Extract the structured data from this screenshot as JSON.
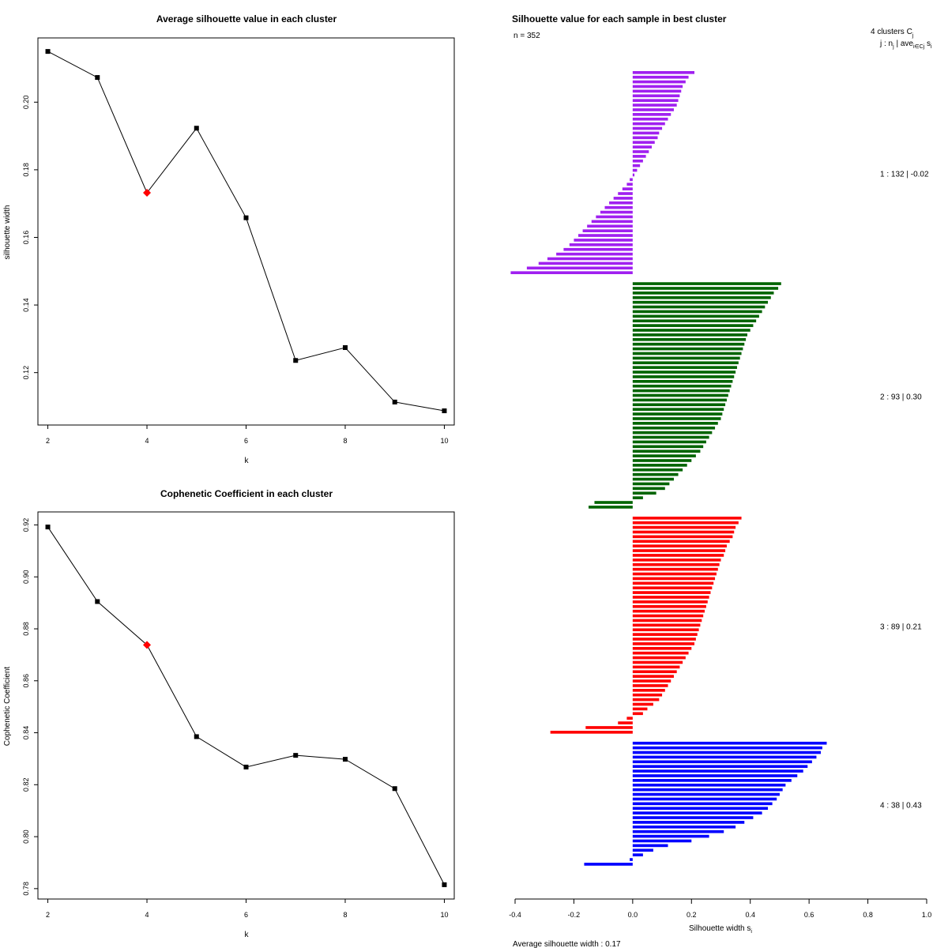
{
  "chart_data": [
    {
      "id": "avg_silhouette",
      "type": "line",
      "title": "Average silhouette value in each cluster",
      "xlabel": "k",
      "ylabel": "silhouette width",
      "x": [
        2,
        3,
        4,
        5,
        6,
        7,
        8,
        9,
        10
      ],
      "values": [
        0.215,
        0.2073,
        0.1732,
        0.1923,
        0.1658,
        0.1236,
        0.1274,
        0.1113,
        0.1087
      ],
      "highlight_x": 4,
      "xlim": [
        1.8,
        10.2
      ],
      "ylim": [
        0.1045,
        0.219
      ],
      "xticks": [
        2,
        4,
        6,
        8,
        10
      ],
      "xtick_labels": [
        "2",
        "4",
        "6",
        "8",
        "10"
      ],
      "yticks": [
        0.12,
        0.14,
        0.16,
        0.18,
        0.2
      ],
      "ytick_labels": [
        "0.12",
        "0.14",
        "0.16",
        "0.18",
        "0.20"
      ],
      "colors": {
        "line": "#000000",
        "point": "#000000",
        "highlight": "#ff0000"
      }
    },
    {
      "id": "cophenetic",
      "type": "line",
      "title": "Cophenetic Coefficient in each cluster",
      "xlabel": "k",
      "ylabel": "Cophenetic Coefficient",
      "x": [
        2,
        3,
        4,
        5,
        6,
        7,
        8,
        9,
        10
      ],
      "values": [
        0.9192,
        0.8905,
        0.8738,
        0.8385,
        0.8268,
        0.8313,
        0.8298,
        0.8185,
        0.7815
      ],
      "highlight_x": 4,
      "xlim": [
        1.8,
        10.2
      ],
      "ylim": [
        0.776,
        0.925
      ],
      "xticks": [
        2,
        4,
        6,
        8,
        10
      ],
      "xtick_labels": [
        "2",
        "4",
        "6",
        "8",
        "10"
      ],
      "yticks": [
        0.78,
        0.8,
        0.82,
        0.84,
        0.86,
        0.88,
        0.9,
        0.92
      ],
      "ytick_labels": [
        "0.78",
        "0.80",
        "0.82",
        "0.84",
        "0.86",
        "0.88",
        "0.90",
        "0.92"
      ],
      "colors": {
        "line": "#000000",
        "point": "#000000",
        "highlight": "#ff0000"
      }
    },
    {
      "id": "silhouette_samples",
      "type": "bar",
      "orientation": "horizontal",
      "title": "Silhouette value for each sample in best cluster",
      "n_label": "n = 352",
      "header_line1": "4  clusters  C",
      "header_sub1": "j",
      "header_line2": "j :  n",
      "header_sub2": "j",
      "header_line2b": " | ave",
      "header_sub3": "i∈Cj",
      "header_line2c": " s",
      "header_sub4": "i",
      "xlabel": "Silhouette width s",
      "xlabel_sub": "i",
      "avg_label": "Average silhouette width :  0.17",
      "xlim": [
        -0.4,
        1.0
      ],
      "xticks": [
        -0.4,
        -0.2,
        0.0,
        0.2,
        0.4,
        0.6,
        0.8,
        1.0
      ],
      "xtick_labels": [
        "-0.4",
        "-0.2",
        "0.0",
        "0.2",
        "0.4",
        "0.6",
        "0.8",
        "1.0"
      ],
      "clusters": [
        {
          "cluster": 1,
          "n": 132,
          "ave": -0.02,
          "label": "1 :   132  |  -0.02",
          "color": "#a020f0",
          "positive": [
            0.21,
            0.19,
            0.18,
            0.17,
            0.165,
            0.16,
            0.155,
            0.15,
            0.14,
            0.13,
            0.12,
            0.11,
            0.1,
            0.09,
            0.085,
            0.075,
            0.065,
            0.055,
            0.045,
            0.035,
            0.025,
            0.015,
            0.006
          ],
          "negative": [
            -0.01,
            -0.02,
            -0.035,
            -0.05,
            -0.065,
            -0.08,
            -0.095,
            -0.11,
            -0.125,
            -0.14,
            -0.155,
            -0.17,
            -0.185,
            -0.2,
            -0.215,
            -0.235,
            -0.26,
            -0.29,
            -0.32,
            -0.36,
            -0.415
          ]
        },
        {
          "cluster": 2,
          "n": 93,
          "ave": 0.3,
          "label": "2 :   93  |  0.30",
          "color": "#006400",
          "positive": [
            0.505,
            0.495,
            0.48,
            0.47,
            0.46,
            0.45,
            0.44,
            0.43,
            0.42,
            0.41,
            0.4,
            0.39,
            0.385,
            0.38,
            0.375,
            0.37,
            0.365,
            0.36,
            0.355,
            0.35,
            0.345,
            0.34,
            0.335,
            0.33,
            0.325,
            0.32,
            0.315,
            0.31,
            0.305,
            0.3,
            0.29,
            0.28,
            0.27,
            0.26,
            0.25,
            0.24,
            0.23,
            0.215,
            0.2,
            0.185,
            0.17,
            0.155,
            0.14,
            0.125,
            0.11,
            0.08,
            0.035
          ],
          "negative": [
            -0.13,
            -0.15
          ]
        },
        {
          "cluster": 3,
          "n": 89,
          "ave": 0.21,
          "label": "3 :   89  |  0.21",
          "color": "#ff0000",
          "positive": [
            0.37,
            0.36,
            0.35,
            0.345,
            0.34,
            0.33,
            0.32,
            0.315,
            0.31,
            0.3,
            0.295,
            0.29,
            0.285,
            0.28,
            0.275,
            0.27,
            0.265,
            0.26,
            0.255,
            0.25,
            0.245,
            0.24,
            0.235,
            0.23,
            0.225,
            0.22,
            0.215,
            0.21,
            0.2,
            0.19,
            0.18,
            0.17,
            0.16,
            0.15,
            0.14,
            0.13,
            0.12,
            0.11,
            0.1,
            0.09,
            0.07,
            0.05,
            0.035
          ],
          "negative": [
            -0.02,
            -0.05,
            -0.16,
            -0.28
          ]
        },
        {
          "cluster": 4,
          "n": 38,
          "ave": 0.43,
          "label": "4 :   38  |  0.43",
          "color": "#0000ff",
          "positive": [
            0.66,
            0.645,
            0.64,
            0.625,
            0.61,
            0.595,
            0.58,
            0.56,
            0.54,
            0.52,
            0.51,
            0.5,
            0.49,
            0.475,
            0.46,
            0.44,
            0.41,
            0.38,
            0.35,
            0.31,
            0.26,
            0.2,
            0.12,
            0.07,
            0.035
          ],
          "negative": [
            -0.01,
            -0.165
          ]
        }
      ]
    }
  ]
}
